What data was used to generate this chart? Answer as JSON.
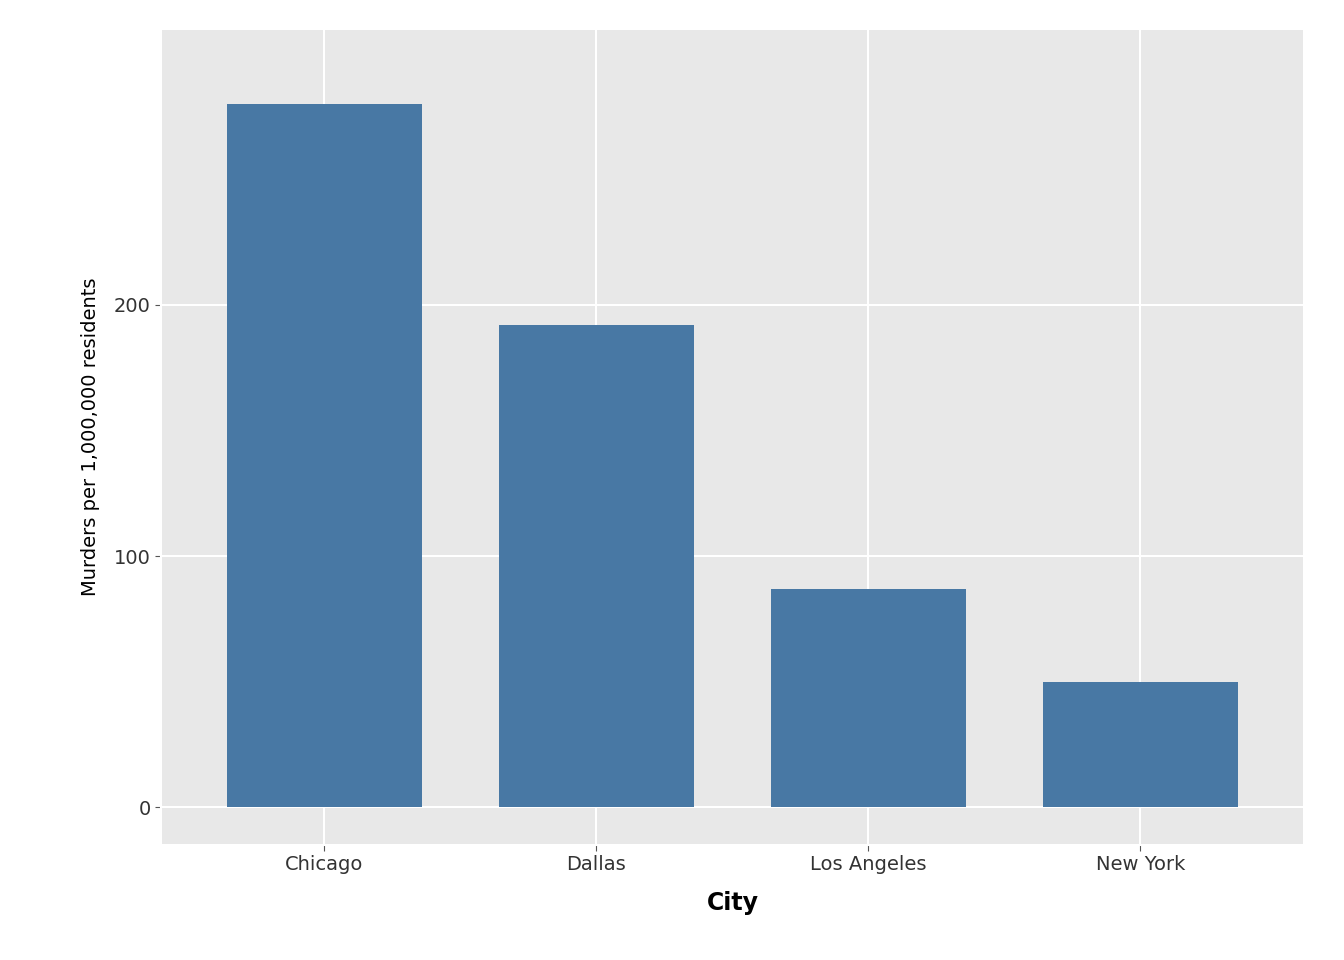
{
  "categories": [
    "Chicago",
    "Dallas",
    "Los Angeles",
    "New York"
  ],
  "values": [
    280,
    192,
    87,
    50
  ],
  "bar_color": "#4878a4",
  "xlabel": "City",
  "ylabel": "Murders per 1,000,000 residents",
  "ylim": [
    -15,
    310
  ],
  "yticks": [
    0,
    100,
    200
  ],
  "background_color": "#e8e8e8",
  "panel_background": "#e8e8e8",
  "outer_background": "#ffffff",
  "grid_color": "#ffffff",
  "xlabel_fontsize": 17,
  "ylabel_fontsize": 14,
  "tick_fontsize": 14,
  "bar_width": 0.72
}
